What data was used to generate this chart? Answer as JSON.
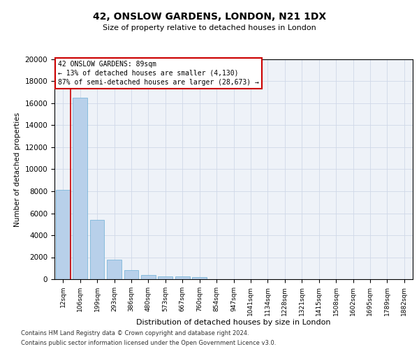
{
  "title": "42, ONSLOW GARDENS, LONDON, N21 1DX",
  "subtitle": "Size of property relative to detached houses in London",
  "xlabel": "Distribution of detached houses by size in London",
  "ylabel": "Number of detached properties",
  "categories": [
    "12sqm",
    "106sqm",
    "199sqm",
    "293sqm",
    "386sqm",
    "480sqm",
    "573sqm",
    "667sqm",
    "760sqm",
    "854sqm",
    "947sqm",
    "1041sqm",
    "1134sqm",
    "1228sqm",
    "1321sqm",
    "1415sqm",
    "1508sqm",
    "1602sqm",
    "1695sqm",
    "1789sqm",
    "1882sqm"
  ],
  "values": [
    8100,
    16500,
    5400,
    1800,
    800,
    350,
    280,
    230,
    200,
    0,
    0,
    0,
    0,
    0,
    0,
    0,
    0,
    0,
    0,
    0,
    0
  ],
  "bar_color": "#b8d0ea",
  "bar_edge_color": "#6baed6",
  "grid_color": "#d0d8e8",
  "background_color": "#eef2f8",
  "ylim": [
    0,
    20000
  ],
  "yticks": [
    0,
    2000,
    4000,
    6000,
    8000,
    10000,
    12000,
    14000,
    16000,
    18000,
    20000
  ],
  "annotation_line1": "42 ONSLOW GARDENS: 89sqm",
  "annotation_line2": "← 13% of detached houses are smaller (4,130)",
  "annotation_line3": "87% of semi-detached houses are larger (28,673) →",
  "annotation_box_color": "#ffffff",
  "annotation_border_color": "#cc0000",
  "red_line_color": "#cc0000",
  "footer_line1": "Contains HM Land Registry data © Crown copyright and database right 2024.",
  "footer_line2": "Contains public sector information licensed under the Open Government Licence v3.0."
}
